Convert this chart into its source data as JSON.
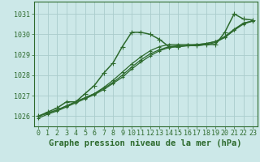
{
  "background_color": "#cce8e8",
  "grid_color": "#aacccc",
  "line_color": "#2d6a2d",
  "xlabel": "Graphe pression niveau de la mer (hPa)",
  "xlabel_fontsize": 7.5,
  "tick_fontsize": 6.0,
  "xlim": [
    -0.5,
    23.5
  ],
  "ylim": [
    1025.5,
    1031.6
  ],
  "yticks": [
    1026,
    1027,
    1028,
    1029,
    1030,
    1031
  ],
  "xticks": [
    0,
    1,
    2,
    3,
    4,
    5,
    6,
    7,
    8,
    9,
    10,
    11,
    12,
    13,
    14,
    15,
    16,
    17,
    18,
    19,
    20,
    21,
    22,
    23
  ],
  "series": [
    {
      "x": [
        0,
        1,
        2,
        3,
        4,
        5,
        6,
        7,
        8,
        9,
        10,
        11,
        12,
        13,
        14,
        15,
        16,
        17,
        18,
        19,
        20,
        21,
        22,
        23
      ],
      "y": [
        1026.0,
        1026.2,
        1026.4,
        1026.7,
        1026.7,
        1027.1,
        1027.5,
        1028.1,
        1028.6,
        1029.4,
        1030.1,
        1030.1,
        1030.0,
        1029.75,
        1029.4,
        1029.4,
        1029.45,
        1029.45,
        1029.5,
        1029.5,
        1030.1,
        1031.0,
        1030.75,
        1030.7
      ],
      "marker": "+",
      "markersize": 4,
      "linewidth": 1.1,
      "linestyle": "-"
    },
    {
      "x": [
        0,
        1,
        2,
        3,
        4,
        5,
        6,
        7,
        8,
        9,
        10,
        11,
        12,
        13,
        14,
        15,
        16,
        17,
        18,
        19,
        20,
        21,
        22,
        23
      ],
      "y": [
        1026.0,
        1026.15,
        1026.3,
        1026.5,
        1026.7,
        1026.9,
        1027.1,
        1027.4,
        1027.75,
        1028.15,
        1028.55,
        1028.9,
        1029.2,
        1029.4,
        1029.5,
        1029.5,
        1029.5,
        1029.5,
        1029.55,
        1029.65,
        1029.85,
        1030.2,
        1030.55,
        1030.65
      ],
      "marker": "+",
      "markersize": 3.5,
      "linewidth": 0.9,
      "linestyle": "-"
    },
    {
      "x": [
        0,
        1,
        2,
        3,
        4,
        5,
        6,
        7,
        8,
        9,
        10,
        11,
        12,
        13,
        14,
        15,
        16,
        17,
        18,
        19,
        20,
        21,
        22,
        23
      ],
      "y": [
        1026.0,
        1026.15,
        1026.3,
        1026.5,
        1026.7,
        1026.9,
        1027.1,
        1027.35,
        1027.65,
        1028.0,
        1028.4,
        1028.75,
        1029.05,
        1029.25,
        1029.4,
        1029.45,
        1029.45,
        1029.5,
        1029.55,
        1029.65,
        1029.9,
        1030.25,
        1030.55,
        1030.65
      ],
      "marker": "+",
      "markersize": 3.5,
      "linewidth": 0.9,
      "linestyle": "-"
    },
    {
      "x": [
        0,
        1,
        2,
        3,
        4,
        5,
        6,
        7,
        8,
        9,
        10,
        11,
        12,
        13,
        14,
        15,
        16,
        17,
        18,
        19,
        20,
        21,
        22,
        23
      ],
      "y": [
        1025.9,
        1026.1,
        1026.25,
        1026.45,
        1026.65,
        1026.85,
        1027.05,
        1027.3,
        1027.6,
        1027.9,
        1028.3,
        1028.65,
        1028.95,
        1029.2,
        1029.35,
        1029.4,
        1029.45,
        1029.45,
        1029.5,
        1029.6,
        1029.85,
        1030.2,
        1030.5,
        1030.65
      ],
      "marker": "+",
      "markersize": 3.5,
      "linewidth": 0.9,
      "linestyle": "-"
    }
  ]
}
